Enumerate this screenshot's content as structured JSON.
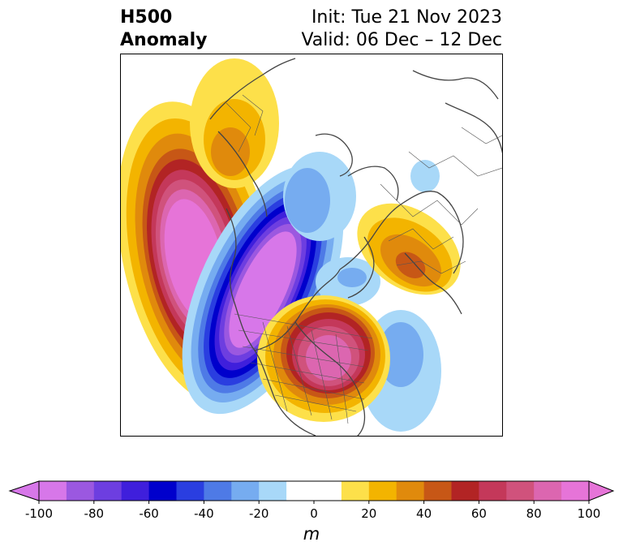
{
  "header": {
    "left_line1": "H500",
    "left_line2": "Anomaly",
    "right_line1": "Init: Tue 21 Nov 2023",
    "right_line2": "Valid: 06 Dec – 12 Dec"
  },
  "colorbar": {
    "unit": "m",
    "min": -100,
    "max": 100,
    "step": 10,
    "ticks": [
      "-100",
      "-80",
      "-60",
      "-40",
      "-20",
      "0",
      "20",
      "40",
      "60",
      "80",
      "100"
    ],
    "colors": [
      "#d777e9",
      "#9b58e0",
      "#6d3ee0",
      "#3f1fdc",
      "#0000cc",
      "#2a3ee0",
      "#4e7ae6",
      "#76acf0",
      "#a8d8f8",
      "#ffffff",
      "#ffffff",
      "#fde04a",
      "#f3b400",
      "#e08a0c",
      "#c75716",
      "#b22424",
      "#c4385a",
      "#d0527c",
      "#dc66b0",
      "#e674d8"
    ],
    "extend_low_color": "#d777e9",
    "extend_high_color": "#e674d8"
  }
}
